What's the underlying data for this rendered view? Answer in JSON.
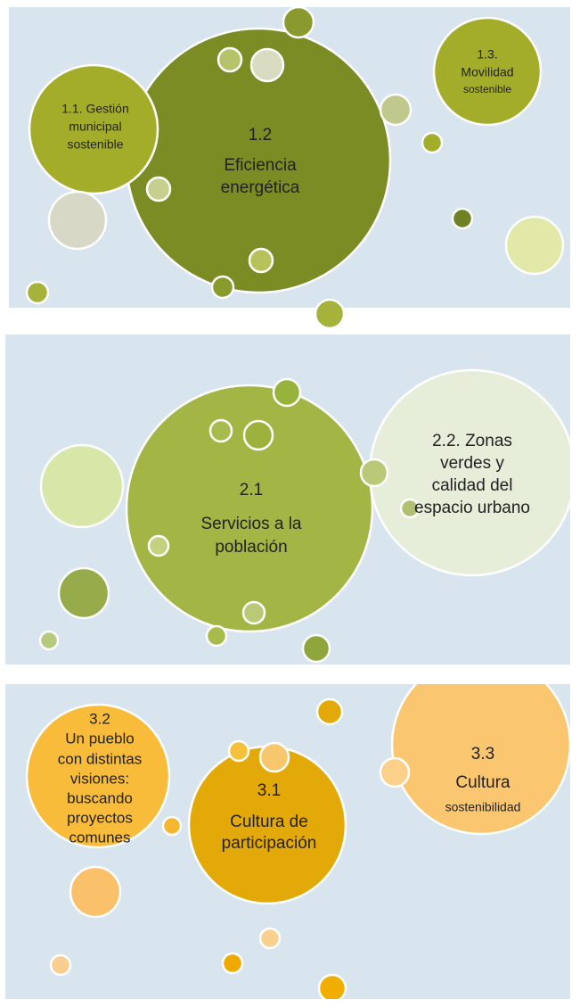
{
  "panels": [
    {
      "bubbles": [
        {
          "lines": [
            "1.2",
            "Eficiencia",
            "energética"
          ]
        },
        {
          "lines": [
            "1.1. Gestión",
            "municipal",
            "sostenible"
          ]
        },
        {
          "lines": [
            "1.3.",
            "Movilidad",
            "sostenible"
          ]
        }
      ]
    },
    {
      "bubbles": [
        {
          "lines": [
            "2.1",
            "Servicios a la",
            "población"
          ]
        },
        {
          "lines": [
            "2.2. Zonas",
            "verdes y",
            "calidad del",
            "espacio urbano"
          ]
        }
      ]
    },
    {
      "bubbles": [
        {
          "lines": [
            "3.1",
            "Cultura de",
            "participación"
          ]
        },
        {
          "lines": [
            "3.2",
            "Un pueblo",
            "con distintas",
            "visiones:",
            "buscando",
            "proyectos",
            "comunes"
          ]
        },
        {
          "lines": [
            "3.3",
            "Cultura",
            "sostenibilidad"
          ]
        }
      ]
    }
  ]
}
